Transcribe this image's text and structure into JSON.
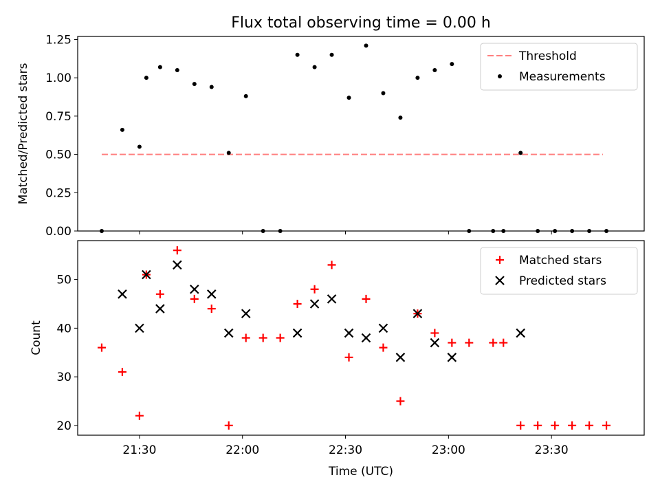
{
  "figure": {
    "title": "Flux total observing time = 0.00 h",
    "xlabel": "Time (UTC)",
    "x_ticks": [
      "21:30",
      "22:00",
      "22:30",
      "23:00",
      "23:30"
    ],
    "xlim": [
      "21:12",
      "23:57"
    ]
  },
  "chart_data": [
    {
      "type": "scatter",
      "ylabel": "Matched/Predicted stars",
      "ylim": [
        0,
        1.27
      ],
      "y_ticks": [
        "0.00",
        "0.25",
        "0.50",
        "0.75",
        "1.00",
        "1.25"
      ],
      "legend": {
        "position": "top-right",
        "entries": [
          "Threshold",
          "Measurements"
        ]
      },
      "threshold": {
        "name": "Threshold",
        "value": 0.5,
        "x_start": "21:19",
        "x_end": "23:45",
        "color": "#ff7f7f",
        "style": "dashed"
      },
      "series": [
        {
          "name": "Measurements",
          "color": "#000000",
          "marker": "dot",
          "points": [
            [
              "21:19",
              0.0
            ],
            [
              "21:25",
              0.66
            ],
            [
              "21:30",
              0.55
            ],
            [
              "21:32",
              1.0
            ],
            [
              "21:36",
              1.07
            ],
            [
              "21:41",
              1.05
            ],
            [
              "21:46",
              0.96
            ],
            [
              "21:51",
              0.94
            ],
            [
              "21:56",
              0.51
            ],
            [
              "22:01",
              0.88
            ],
            [
              "22:06",
              0.0
            ],
            [
              "22:11",
              0.0
            ],
            [
              "22:16",
              1.15
            ],
            [
              "22:21",
              1.07
            ],
            [
              "22:26",
              1.15
            ],
            [
              "22:31",
              0.87
            ],
            [
              "22:36",
              1.21
            ],
            [
              "22:41",
              0.9
            ],
            [
              "22:46",
              0.74
            ],
            [
              "22:51",
              1.0
            ],
            [
              "22:56",
              1.05
            ],
            [
              "23:01",
              1.09
            ],
            [
              "23:06",
              0.0
            ],
            [
              "23:13",
              0.0
            ],
            [
              "23:16",
              0.0
            ],
            [
              "23:21",
              0.51
            ],
            [
              "23:26",
              0.0
            ],
            [
              "23:31",
              0.0
            ],
            [
              "23:36",
              0.0
            ],
            [
              "23:41",
              0.0
            ],
            [
              "23:46",
              0.0
            ]
          ]
        }
      ]
    },
    {
      "type": "scatter",
      "ylabel": "Count",
      "ylim": [
        18,
        58
      ],
      "y_ticks": [
        "20",
        "30",
        "40",
        "50"
      ],
      "legend": {
        "position": "top-right",
        "entries": [
          "Matched stars",
          "Predicted stars"
        ]
      },
      "series": [
        {
          "name": "Matched stars",
          "color": "#ff0000",
          "marker": "plus",
          "points": [
            [
              "21:19",
              36
            ],
            [
              "21:25",
              31
            ],
            [
              "21:30",
              22
            ],
            [
              "21:32",
              51
            ],
            [
              "21:36",
              47
            ],
            [
              "21:41",
              56
            ],
            [
              "21:46",
              46
            ],
            [
              "21:51",
              44
            ],
            [
              "21:56",
              20
            ],
            [
              "22:01",
              38
            ],
            [
              "22:06",
              38
            ],
            [
              "22:11",
              38
            ],
            [
              "22:16",
              45
            ],
            [
              "22:21",
              48
            ],
            [
              "22:26",
              53
            ],
            [
              "22:31",
              34
            ],
            [
              "22:36",
              46
            ],
            [
              "22:41",
              36
            ],
            [
              "22:46",
              25
            ],
            [
              "22:51",
              43
            ],
            [
              "22:56",
              39
            ],
            [
              "23:01",
              37
            ],
            [
              "23:06",
              37
            ],
            [
              "23:13",
              37
            ],
            [
              "23:16",
              37
            ],
            [
              "23:21",
              20
            ],
            [
              "23:26",
              20
            ],
            [
              "23:31",
              20
            ],
            [
              "23:36",
              20
            ],
            [
              "23:41",
              20
            ],
            [
              "23:46",
              20
            ]
          ]
        },
        {
          "name": "Predicted stars",
          "color": "#000000",
          "marker": "x",
          "points": [
            [
              "21:25",
              47
            ],
            [
              "21:30",
              40
            ],
            [
              "21:32",
              51
            ],
            [
              "21:36",
              44
            ],
            [
              "21:41",
              53
            ],
            [
              "21:46",
              48
            ],
            [
              "21:51",
              47
            ],
            [
              "21:56",
              39
            ],
            [
              "22:01",
              43
            ],
            [
              "22:16",
              39
            ],
            [
              "22:21",
              45
            ],
            [
              "22:26",
              46
            ],
            [
              "22:31",
              39
            ],
            [
              "22:36",
              38
            ],
            [
              "22:41",
              40
            ],
            [
              "22:46",
              34
            ],
            [
              "22:51",
              43
            ],
            [
              "22:56",
              37
            ],
            [
              "23:01",
              34
            ],
            [
              "23:21",
              39
            ]
          ]
        }
      ]
    }
  ]
}
